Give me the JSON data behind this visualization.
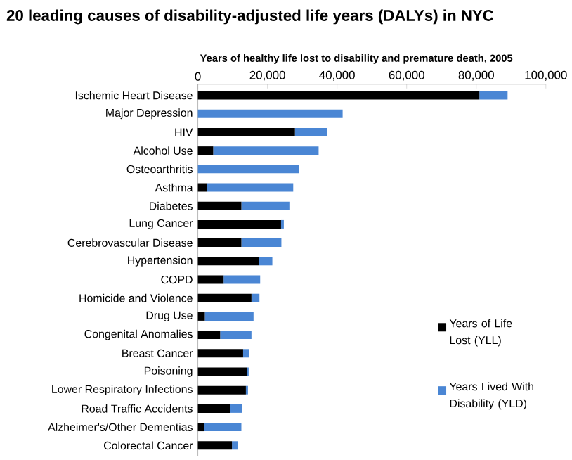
{
  "chart_data": {
    "type": "bar",
    "orientation": "horizontal",
    "stacked": true,
    "title": "20 leading causes of disability-adjusted life years (DALYs) in NYC",
    "xlabel": "Years of healthy life lost to disability and premature death, 2005",
    "categories": [
      "Ischemic Heart Disease",
      "Major Depression",
      "HIV",
      "Alcohol Use",
      "Osteoarthritis",
      "Asthma",
      "Diabetes",
      "Lung Cancer",
      "Cerebrovascular Disease",
      "Hypertension",
      "COPD",
      "Homicide and Violence",
      "Drug Use",
      "Congenital Anomalies",
      "Breast Cancer",
      "Poisoning",
      "Lower Respiratory Infections",
      "Road Traffic Accidents",
      "Alzheimer's/Other Dementias",
      "Colorectal Cancer"
    ],
    "series": [
      {
        "name": "Years of Life Lost (YLL)",
        "color": "#000000",
        "values": [
          80900,
          0,
          27900,
          4400,
          0,
          2700,
          12500,
          23900,
          12500,
          17600,
          7400,
          15400,
          2000,
          6400,
          13000,
          14200,
          13800,
          9300,
          1700,
          9800
        ]
      },
      {
        "name": "Years Lived With Disability (YLD)",
        "color": "#4a86d4",
        "values": [
          8100,
          41600,
          9200,
          30300,
          29000,
          24700,
          13800,
          800,
          11500,
          3800,
          10500,
          2300,
          14000,
          9000,
          1800,
          400,
          600,
          3300,
          10800,
          1800
        ]
      }
    ],
    "xlim": [
      0,
      100000
    ],
    "xticks": [
      0,
      {
        "value": 20000,
        "label": "20,000"
      },
      {
        "value": 40000,
        "label": "40,000"
      },
      {
        "value": 60000,
        "label": "60,000"
      },
      {
        "value": 80000,
        "label": "80,000"
      },
      {
        "value": 100000,
        "label": "100,000"
      }
    ],
    "grid": false,
    "legend": "right"
  }
}
